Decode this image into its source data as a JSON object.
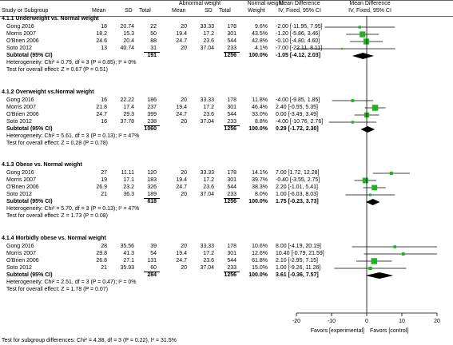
{
  "header": {
    "group_abnormal": "Abnormal weight",
    "group_normal": "Normal weight",
    "col_study": "Study or Subgroup",
    "col_mean": "Mean",
    "col_sd": "SD",
    "col_total": "Total",
    "col_weight": "Weight",
    "col_md_title": "Mean Difference",
    "col_md_method": "IV, Fixed, 95% CI",
    "plot_title": "Mean Difference",
    "plot_method": "IV, Fixed, 95% CI"
  },
  "chart_data": {
    "type": "forest",
    "xlim": [
      -20,
      20
    ],
    "x_ticks": [
      "-20",
      "-10",
      "0",
      "10",
      "20"
    ],
    "favors_left": "Favors [experimental]",
    "favors_right": "Favors [control]",
    "subgroups": [
      {
        "title": "4.1.1 Underweight vs. Normal weight",
        "studies": [
          {
            "name": "Gong 2016",
            "m1": "18",
            "sd1": "20.74",
            "n1": "22",
            "m2": "20",
            "sd2": "33.33",
            "n2": "178",
            "weight": "9.6%",
            "ci_text": "-2.00 [-11.95, 7.95]",
            "est": -2.0,
            "lo": -11.95,
            "hi": 7.95
          },
          {
            "name": "Morris 2007",
            "m1": "18.2",
            "sd1": "15.3",
            "n1": "50",
            "m2": "19.4",
            "sd2": "17.2",
            "n2": "301",
            "weight": "43.5%",
            "ci_text": "-1.20 [-5.86, 3.46]",
            "est": -1.2,
            "lo": -5.86,
            "hi": 3.46
          },
          {
            "name": "O'Brien 2006",
            "m1": "24.6",
            "sd1": "20.4",
            "n1": "88",
            "m2": "24.7",
            "sd2": "23.6",
            "n2": "544",
            "weight": "42.8%",
            "ci_text": "-0.10 [-4.80, 4.60]",
            "est": -0.1,
            "lo": -4.8,
            "hi": 4.6
          },
          {
            "name": "Soto 2012",
            "m1": "13",
            "sd1": "40.74",
            "n1": "31",
            "m2": "20",
            "sd2": "37.04",
            "n2": "233",
            "weight": "4.1%",
            "ci_text": "-7.00 [-22.11, 8.11]",
            "est": -7.0,
            "lo": -22.11,
            "hi": 8.11
          }
        ],
        "subtotal": {
          "label": "Subtotal (95% CI)",
          "n1": "191",
          "n2": "1256",
          "weight": "100.0%",
          "ci_text": "-1.05 [-4.12, 2.03]",
          "est": -1.05,
          "lo": -4.12,
          "hi": 2.03
        },
        "heterogeneity": "Heterogeneity: Chi² = 0.79, df = 3 (P = 0.85); I² = 0%",
        "overall": "Test for overall effect: Z = 0.67 (P = 0.51)"
      },
      {
        "title": "4.1.2 Overweight vs.Normal weight",
        "studies": [
          {
            "name": "Gong 2016",
            "m1": "16",
            "sd1": "22.22",
            "n1": "186",
            "m2": "20",
            "sd2": "33.33",
            "n2": "178",
            "weight": "11.8%",
            "ci_text": "-4.00 [-9.85, 1.85]",
            "est": -4.0,
            "lo": -9.85,
            "hi": 1.85
          },
          {
            "name": "Morris 2007",
            "m1": "21.8",
            "sd1": "17.4",
            "n1": "237",
            "m2": "19.4",
            "sd2": "17.2",
            "n2": "301",
            "weight": "46.4%",
            "ci_text": "2.40 [-0.55, 5.35]",
            "est": 2.4,
            "lo": -0.55,
            "hi": 5.35
          },
          {
            "name": "O'Brien 2006",
            "m1": "24.7",
            "sd1": "29.3",
            "n1": "399",
            "m2": "24.7",
            "sd2": "23.6",
            "n2": "544",
            "weight": "33.0%",
            "ci_text": "0.00 [-3.49, 3.49]",
            "est": 0.0,
            "lo": -3.49,
            "hi": 3.49
          },
          {
            "name": "Soto 2012",
            "m1": "16",
            "sd1": "37.78",
            "n1": "238",
            "m2": "20",
            "sd2": "37.04",
            "n2": "233",
            "weight": "8.8%",
            "ci_text": "-4.00 [-10.76, 2.76]",
            "est": -4.0,
            "lo": -10.76,
            "hi": 2.76
          }
        ],
        "subtotal": {
          "label": "Subtotal (95% CI)",
          "n1": "1060",
          "n2": "1256",
          "weight": "100.0%",
          "ci_text": "0.29 [-1.72, 2.30]",
          "est": 0.29,
          "lo": -1.72,
          "hi": 2.3
        },
        "heterogeneity": "Heterogeneity: Chi² = 5.61, df = 3 (P = 0.13); I² = 47%",
        "overall": "Test for overall effect: Z = 0.28 (P = 0.78)"
      },
      {
        "title": "4.1.3 Obese vs. Normal weight",
        "studies": [
          {
            "name": "Gong 2016",
            "m1": "27",
            "sd1": "11.11",
            "n1": "120",
            "m2": "20",
            "sd2": "33.33",
            "n2": "178",
            "weight": "14.1%",
            "ci_text": "7.00 [1.72, 12.28]",
            "est": 7.0,
            "lo": 1.72,
            "hi": 12.28
          },
          {
            "name": "Morris 2007",
            "m1": "19",
            "sd1": "17.1",
            "n1": "183",
            "m2": "19.4",
            "sd2": "17.2",
            "n2": "301",
            "weight": "39.7%",
            "ci_text": "-0.40 [-3.55, 2.75]",
            "est": -0.4,
            "lo": -3.55,
            "hi": 2.75
          },
          {
            "name": "O'Brien 2006",
            "m1": "26.9",
            "sd1": "23.2",
            "n1": "326",
            "m2": "24.7",
            "sd2": "23.6",
            "n2": "544",
            "weight": "38.3%",
            "ci_text": "2.20 [-1.01, 5.41]",
            "est": 2.2,
            "lo": -1.01,
            "hi": 5.41
          },
          {
            "name": "Soto 2012",
            "m1": "21",
            "sd1": "36.3",
            "n1": "189",
            "m2": "20",
            "sd2": "37.04",
            "n2": "233",
            "weight": "8.0%",
            "ci_text": "1.00 [-6.03, 8.03]",
            "est": 1.0,
            "lo": -6.03,
            "hi": 8.03
          }
        ],
        "subtotal": {
          "label": "Subtotal (95% CI)",
          "n1": "818",
          "n2": "1256",
          "weight": "100.0%",
          "ci_text": "1.75 [-0.23, 3.73]",
          "est": 1.75,
          "lo": -0.23,
          "hi": 3.73
        },
        "heterogeneity": "Heterogeneity: Chi² = 5.70, df = 3 (P = 0.13); I² = 47%",
        "overall": "Test for overall effect: Z = 1.73 (P = 0.08)"
      },
      {
        "title": "4.1.4 Morbidly obese vs. Normal weight",
        "studies": [
          {
            "name": "Gong 2016",
            "m1": "28",
            "sd1": "35.56",
            "n1": "39",
            "m2": "20",
            "sd2": "33.33",
            "n2": "178",
            "weight": "10.6%",
            "ci_text": "8.00 [-4.19, 20.19]",
            "est": 8.0,
            "lo": -4.19,
            "hi": 20.19
          },
          {
            "name": "Morris 2007",
            "m1": "29.8",
            "sd1": "41.3",
            "n1": "54",
            "m2": "19.4",
            "sd2": "17.2",
            "n2": "301",
            "weight": "12.6%",
            "ci_text": "10.40 [-0.79, 21.59]",
            "est": 10.4,
            "lo": -0.79,
            "hi": 21.59
          },
          {
            "name": "O'Brien 2006",
            "m1": "26.8",
            "sd1": "27.1",
            "n1": "131",
            "m2": "24.7",
            "sd2": "23.6",
            "n2": "544",
            "weight": "61.8%",
            "ci_text": "2.10 [-2.95, 7.15]",
            "est": 2.1,
            "lo": -2.95,
            "hi": 7.15
          },
          {
            "name": "Soto 2012",
            "m1": "21",
            "sd1": "35.93",
            "n1": "60",
            "m2": "20",
            "sd2": "37.04",
            "n2": "233",
            "weight": "15.0%",
            "ci_text": "1.00 [-9.26, 11.26]",
            "est": 1.0,
            "lo": -9.26,
            "hi": 11.26
          }
        ],
        "subtotal": {
          "label": "Subtotal (95% CI)",
          "n1": "284",
          "n2": "1256",
          "weight": "100.0%",
          "ci_text": "3.61 [-0.36, 7.57]",
          "est": 3.61,
          "lo": -0.36,
          "hi": 7.57
        },
        "heterogeneity": "Heterogeneity: Chi² = 2.51, df = 3 (P = 0.47); I² = 0%",
        "overall": "Test for overall effect: Z = 1.78 (P = 0.07)"
      }
    ],
    "subgroup_test": "Test for subgroup differences: Chi² = 4.38, df = 3 (P = 0.22), I² = 31.5%"
  }
}
